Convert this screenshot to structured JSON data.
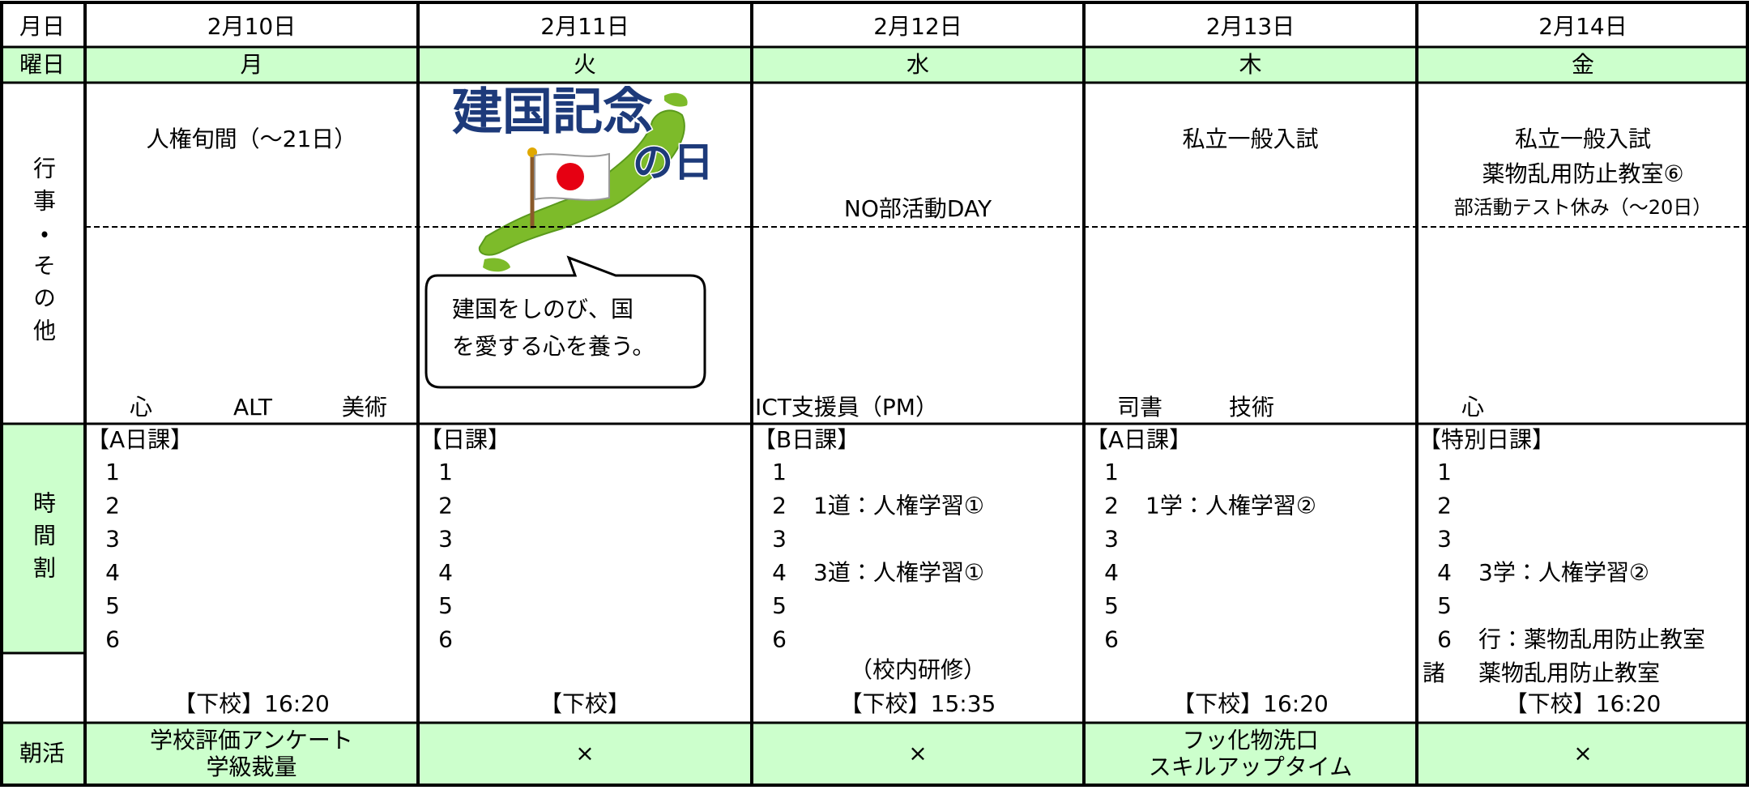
{
  "header": {
    "date_label": "月日",
    "weekday_label": "曜日",
    "events_label": "行事・その他",
    "schedule_label": "時間割",
    "morning_label": "朝活"
  },
  "days": [
    {
      "date": "2月10日",
      "weekday": "月",
      "events": [
        "人権旬間（～21日）"
      ],
      "staff": [
        "心",
        "ALT",
        "美術"
      ],
      "schedule_type": "【A日課】",
      "periods": [
        {
          "num": 1
        },
        {
          "num": 2
        },
        {
          "num": 3
        },
        {
          "num": 4
        },
        {
          "num": 5
        },
        {
          "num": 6
        }
      ],
      "dismissal": "【下校】16:20",
      "morning": [
        "学校評価アンケート",
        "学級裁量"
      ]
    },
    {
      "date": "2月11日",
      "weekday": "火",
      "illustration": {
        "title_lines": [
          "建国記念",
          "の日"
        ],
        "bubble_lines": [
          "建国をしのび、国",
          "を愛する心を養う。"
        ]
      },
      "schedule_type": "【日課】",
      "periods": [
        {
          "num": 1
        },
        {
          "num": 2
        },
        {
          "num": 3
        },
        {
          "num": 4
        },
        {
          "num": 5
        },
        {
          "num": 6
        }
      ],
      "dismissal": "【下校】",
      "morning": [
        "×"
      ]
    },
    {
      "date": "2月12日",
      "weekday": "水",
      "events": [
        "NO部活動DAY"
      ],
      "staff": [
        "ICT支援員（PM）"
      ],
      "schedule_type": "【B日課】",
      "periods": [
        {
          "num": 1
        },
        {
          "num": 2,
          "text": "1道：人権学習①"
        },
        {
          "num": 3
        },
        {
          "num": 4,
          "text": "3道：人権学習①"
        },
        {
          "num": 5
        },
        {
          "num": 6
        }
      ],
      "note": "（校内研修）",
      "dismissal": "【下校】15:35",
      "morning": [
        "×"
      ]
    },
    {
      "date": "2月13日",
      "weekday": "木",
      "events": [
        "私立一般入試"
      ],
      "staff": [
        "司書",
        "技術"
      ],
      "schedule_type": "【A日課】",
      "periods": [
        {
          "num": 1
        },
        {
          "num": 2,
          "text": "1学：人権学習②"
        },
        {
          "num": 3
        },
        {
          "num": 4
        },
        {
          "num": 5
        },
        {
          "num": 6
        }
      ],
      "dismissal": "【下校】16:20",
      "morning": [
        "フッ化物洗口",
        "スキルアップタイム"
      ]
    },
    {
      "date": "2月14日",
      "weekday": "金",
      "events": [
        "私立一般入試",
        "薬物乱用防止教室⑥",
        "部活動テスト休み（～20日）"
      ],
      "staff": [
        "心"
      ],
      "schedule_type": "【特別日課】",
      "periods": [
        {
          "num": 1
        },
        {
          "num": 2
        },
        {
          "num": 3
        },
        {
          "num": 4,
          "text": "3学：人権学習②"
        },
        {
          "num": 5
        },
        {
          "num": 6,
          "text": "行：薬物乱用防止教室"
        },
        {
          "num": "諸",
          "text": "薬物乱用防止教室"
        }
      ],
      "dismissal": "【下校】16:20",
      "morning": [
        "×"
      ]
    }
  ]
}
